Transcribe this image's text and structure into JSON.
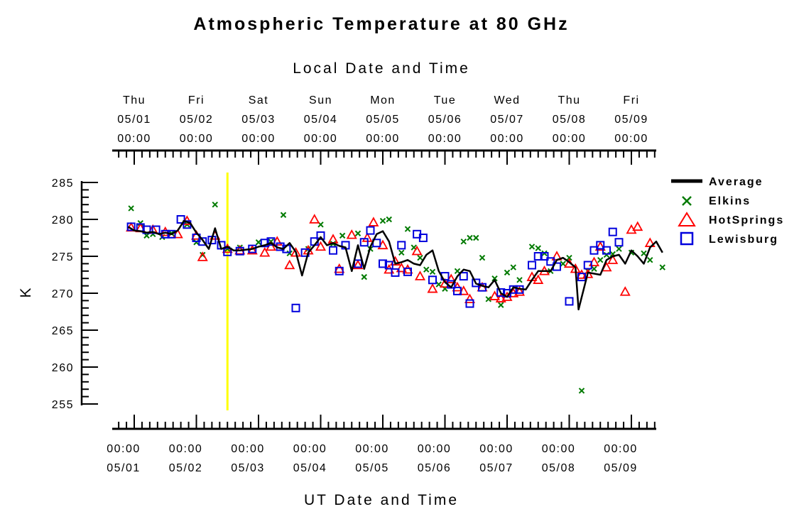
{
  "chart_data": {
    "type": "line",
    "title": "Atmospheric Temperature at 80 GHz",
    "xlabel": "UT Date and Time",
    "x2label": "Local Date and Time",
    "ylabel": "K",
    "ylim": [
      255,
      285
    ],
    "yticks": [
      "285",
      "280",
      "275",
      "270",
      "265",
      "260",
      "255"
    ],
    "xlim": [
      "05/01 00:00",
      "05/09 12:00"
    ],
    "bottom_ticks": [
      {
        "time": "00:00",
        "date": "05/01"
      },
      {
        "time": "00:00",
        "date": "05/02"
      },
      {
        "time": "00:00",
        "date": "05/03"
      },
      {
        "time": "00:00",
        "date": "05/04"
      },
      {
        "time": "00:00",
        "date": "05/05"
      },
      {
        "time": "00:00",
        "date": "05/06"
      },
      {
        "time": "00:00",
        "date": "05/07"
      },
      {
        "time": "00:00",
        "date": "05/08"
      },
      {
        "time": "00:00",
        "date": "05/09"
      }
    ],
    "top_ticks": [
      {
        "day": "Thu",
        "date": "05/01",
        "time": "00:00"
      },
      {
        "day": "Fri",
        "date": "05/02",
        "time": "00:00"
      },
      {
        "day": "Sat",
        "date": "05/03",
        "time": "00:00"
      },
      {
        "day": "Sun",
        "date": "05/04",
        "time": "00:00"
      },
      {
        "day": "Mon",
        "date": "05/05",
        "time": "00:00"
      },
      {
        "day": "Tue",
        "date": "05/06",
        "time": "00:00"
      },
      {
        "day": "Wed",
        "date": "05/07",
        "time": "00:00"
      },
      {
        "day": "Thu",
        "date": "05/08",
        "time": "00:00"
      },
      {
        "day": "Fri",
        "date": "05/09",
        "time": "00:00"
      }
    ],
    "marker_line_day": 1.5,
    "legend_position": "right",
    "series": [
      {
        "name": "Average",
        "style": "line",
        "color": "#000000",
        "points": [
          [
            -0.1,
            279.0
          ],
          [
            0.0,
            278.5
          ],
          [
            0.1,
            278.4
          ],
          [
            0.2,
            278.2
          ],
          [
            0.3,
            278.3
          ],
          [
            0.4,
            278.0
          ],
          [
            0.5,
            278.2
          ],
          [
            0.6,
            278.0
          ],
          [
            0.7,
            278.5
          ],
          [
            0.8,
            279.8
          ],
          [
            0.9,
            279.5
          ],
          [
            1.0,
            278.2
          ],
          [
            1.1,
            277.2
          ],
          [
            1.2,
            276.0
          ],
          [
            1.3,
            278.8
          ],
          [
            1.4,
            276.0
          ],
          [
            1.5,
            276.3
          ],
          [
            1.6,
            275.8
          ],
          [
            1.7,
            275.8
          ],
          [
            1.8,
            275.9
          ],
          [
            1.9,
            276.0
          ],
          [
            2.0,
            276.3
          ],
          [
            2.1,
            276.5
          ],
          [
            2.2,
            276.8
          ],
          [
            2.3,
            276.2
          ],
          [
            2.4,
            276.0
          ],
          [
            2.5,
            276.8
          ],
          [
            2.6,
            275.6
          ],
          [
            2.7,
            272.4
          ],
          [
            2.8,
            275.5
          ],
          [
            2.9,
            276.5
          ],
          [
            3.0,
            277.6
          ],
          [
            3.1,
            276.5
          ],
          [
            3.2,
            276.8
          ],
          [
            3.3,
            276.4
          ],
          [
            3.4,
            276.2
          ],
          [
            3.5,
            273.0
          ],
          [
            3.6,
            276.5
          ],
          [
            3.7,
            273.3
          ],
          [
            3.8,
            276.3
          ],
          [
            3.9,
            278.0
          ],
          [
            4.0,
            278.4
          ],
          [
            4.1,
            277.0
          ],
          [
            4.2,
            274.0
          ],
          [
            4.3,
            274.2
          ],
          [
            4.4,
            274.5
          ],
          [
            4.5,
            274.0
          ],
          [
            4.6,
            273.8
          ],
          [
            4.7,
            275.2
          ],
          [
            4.8,
            275.8
          ],
          [
            4.9,
            273.0
          ],
          [
            5.0,
            271.5
          ],
          [
            5.1,
            270.8
          ],
          [
            5.2,
            272.3
          ],
          [
            5.3,
            273.2
          ],
          [
            5.4,
            273.0
          ],
          [
            5.5,
            271.3
          ],
          [
            5.6,
            271.0
          ],
          [
            5.7,
            270.8
          ],
          [
            5.8,
            271.8
          ],
          [
            5.9,
            270.0
          ],
          [
            6.0,
            269.5
          ],
          [
            6.1,
            270.8
          ],
          [
            6.2,
            270.6
          ],
          [
            6.3,
            270.5
          ],
          [
            6.4,
            271.8
          ],
          [
            6.5,
            273.0
          ],
          [
            6.6,
            273.0
          ],
          [
            6.7,
            273.0
          ],
          [
            6.8,
            274.5
          ],
          [
            6.9,
            274.8
          ],
          [
            7.0,
            274.2
          ],
          [
            7.1,
            273.5
          ],
          [
            7.15,
            267.8
          ],
          [
            7.3,
            272.8
          ],
          [
            7.5,
            272.5
          ],
          [
            7.6,
            274.5
          ],
          [
            7.7,
            275.0
          ],
          [
            7.8,
            275.2
          ],
          [
            7.9,
            274.0
          ],
          [
            8.0,
            275.8
          ],
          [
            8.1,
            275.0
          ],
          [
            8.2,
            274.0
          ],
          [
            8.3,
            276.2
          ],
          [
            8.4,
            277.0
          ],
          [
            8.5,
            275.5
          ]
        ]
      },
      {
        "name": "Elkins",
        "style": "x",
        "color": "#007a00",
        "points": [
          [
            -0.05,
            281.5
          ],
          [
            0.1,
            279.5
          ],
          [
            0.2,
            277.8
          ],
          [
            0.3,
            278.0
          ],
          [
            0.45,
            277.6
          ],
          [
            0.6,
            278.1
          ],
          [
            0.85,
            279.3
          ],
          [
            1.0,
            276.9
          ],
          [
            1.1,
            275.2
          ],
          [
            1.3,
            282.0
          ],
          [
            1.5,
            276.0
          ],
          [
            1.7,
            276.2
          ],
          [
            2.0,
            276.9
          ],
          [
            2.2,
            277.0
          ],
          [
            2.4,
            280.6
          ],
          [
            2.5,
            275.4
          ],
          [
            2.8,
            276.0
          ],
          [
            3.0,
            279.3
          ],
          [
            3.2,
            276.7
          ],
          [
            3.35,
            277.8
          ],
          [
            3.6,
            278.1
          ],
          [
            3.7,
            272.2
          ],
          [
            3.8,
            276.0
          ],
          [
            4.0,
            279.8
          ],
          [
            4.1,
            280.0
          ],
          [
            4.3,
            275.5
          ],
          [
            4.4,
            278.7
          ],
          [
            4.5,
            276.2
          ],
          [
            4.6,
            274.8
          ],
          [
            4.7,
            273.2
          ],
          [
            4.8,
            272.9
          ],
          [
            4.9,
            271.2
          ],
          [
            5.0,
            270.6
          ],
          [
            5.2,
            273.0
          ],
          [
            5.3,
            277.0
          ],
          [
            5.4,
            277.5
          ],
          [
            5.5,
            277.5
          ],
          [
            5.6,
            274.8
          ],
          [
            5.7,
            269.2
          ],
          [
            5.8,
            272.0
          ],
          [
            5.9,
            268.4
          ],
          [
            6.0,
            272.8
          ],
          [
            6.1,
            273.5
          ],
          [
            6.2,
            271.8
          ],
          [
            6.4,
            276.3
          ],
          [
            6.5,
            276.1
          ],
          [
            6.6,
            275.4
          ],
          [
            6.7,
            273.0
          ],
          [
            6.9,
            274.0
          ],
          [
            7.0,
            274.8
          ],
          [
            7.2,
            256.8
          ],
          [
            7.3,
            273.0
          ],
          [
            7.4,
            273.3
          ],
          [
            7.5,
            274.5
          ],
          [
            7.6,
            275.2
          ],
          [
            7.7,
            275.3
          ],
          [
            7.8,
            276.0
          ],
          [
            8.0,
            275.5
          ],
          [
            8.2,
            275.4
          ],
          [
            8.3,
            274.5
          ],
          [
            8.5,
            273.5
          ]
        ]
      },
      {
        "name": "HotSprings",
        "style": "triangle",
        "color": "#ff0000",
        "points": [
          [
            -0.05,
            278.9
          ],
          [
            0.1,
            278.8
          ],
          [
            0.3,
            278.6
          ],
          [
            0.5,
            278.3
          ],
          [
            0.7,
            278.0
          ],
          [
            0.85,
            279.8
          ],
          [
            1.0,
            277.8
          ],
          [
            1.1,
            274.9
          ],
          [
            1.3,
            277.8
          ],
          [
            1.5,
            276.0
          ],
          [
            1.7,
            275.8
          ],
          [
            1.9,
            275.8
          ],
          [
            2.1,
            275.5
          ],
          [
            2.2,
            276.3
          ],
          [
            2.3,
            277.0
          ],
          [
            2.5,
            273.8
          ],
          [
            2.6,
            275.5
          ],
          [
            2.8,
            275.8
          ],
          [
            2.9,
            280.0
          ],
          [
            3.0,
            276.3
          ],
          [
            3.2,
            277.3
          ],
          [
            3.3,
            273.3
          ],
          [
            3.5,
            277.9
          ],
          [
            3.6,
            273.8
          ],
          [
            3.75,
            277.5
          ],
          [
            3.85,
            279.6
          ],
          [
            4.0,
            276.5
          ],
          [
            4.1,
            273.2
          ],
          [
            4.2,
            274.3
          ],
          [
            4.3,
            273.4
          ],
          [
            4.4,
            273.2
          ],
          [
            4.55,
            275.7
          ],
          [
            4.6,
            272.3
          ],
          [
            4.8,
            270.6
          ],
          [
            5.0,
            271.3
          ],
          [
            5.1,
            271.9
          ],
          [
            5.2,
            270.8
          ],
          [
            5.3,
            270.3
          ],
          [
            5.4,
            269.2
          ],
          [
            5.6,
            270.8
          ],
          [
            5.8,
            269.6
          ],
          [
            5.9,
            269.3
          ],
          [
            6.0,
            269.5
          ],
          [
            6.1,
            270.0
          ],
          [
            6.2,
            270.2
          ],
          [
            6.4,
            272.2
          ],
          [
            6.5,
            271.8
          ],
          [
            6.6,
            273.0
          ],
          [
            6.8,
            275.0
          ],
          [
            7.0,
            274.0
          ],
          [
            7.1,
            273.3
          ],
          [
            7.2,
            272.5
          ],
          [
            7.3,
            272.6
          ],
          [
            7.4,
            274.2
          ],
          [
            7.5,
            276.3
          ],
          [
            7.6,
            273.5
          ],
          [
            7.7,
            274.5
          ],
          [
            7.9,
            270.2
          ],
          [
            8.0,
            278.6
          ],
          [
            8.1,
            279.0
          ],
          [
            8.3,
            276.8
          ]
        ]
      },
      {
        "name": "Lewisburg",
        "style": "square",
        "color": "#0000dd",
        "points": [
          [
            -0.05,
            279.0
          ],
          [
            0.1,
            278.9
          ],
          [
            0.2,
            278.6
          ],
          [
            0.35,
            278.6
          ],
          [
            0.5,
            278.0
          ],
          [
            0.6,
            278.0
          ],
          [
            0.75,
            280.0
          ],
          [
            0.85,
            279.3
          ],
          [
            1.0,
            277.5
          ],
          [
            1.1,
            277.0
          ],
          [
            1.25,
            277.2
          ],
          [
            1.4,
            276.5
          ],
          [
            1.5,
            275.6
          ],
          [
            1.7,
            275.7
          ],
          [
            1.9,
            276.0
          ],
          [
            2.1,
            276.8
          ],
          [
            2.2,
            277.0
          ],
          [
            2.35,
            276.3
          ],
          [
            2.45,
            276.0
          ],
          [
            2.6,
            268.0
          ],
          [
            2.75,
            275.5
          ],
          [
            2.9,
            277.0
          ],
          [
            3.0,
            277.8
          ],
          [
            3.2,
            275.8
          ],
          [
            3.3,
            273.0
          ],
          [
            3.4,
            276.5
          ],
          [
            3.6,
            274.0
          ],
          [
            3.7,
            276.9
          ],
          [
            3.8,
            278.5
          ],
          [
            3.9,
            276.8
          ],
          [
            4.0,
            274.0
          ],
          [
            4.1,
            273.8
          ],
          [
            4.2,
            272.8
          ],
          [
            4.3,
            276.5
          ],
          [
            4.4,
            272.9
          ],
          [
            4.55,
            278.0
          ],
          [
            4.65,
            277.5
          ],
          [
            4.8,
            271.8
          ],
          [
            5.0,
            272.3
          ],
          [
            5.1,
            271.2
          ],
          [
            5.2,
            270.3
          ],
          [
            5.3,
            272.3
          ],
          [
            5.4,
            268.6
          ],
          [
            5.5,
            271.4
          ],
          [
            5.6,
            270.8
          ],
          [
            5.9,
            270.1
          ],
          [
            6.0,
            270.0
          ],
          [
            6.1,
            270.5
          ],
          [
            6.2,
            270.5
          ],
          [
            6.4,
            273.8
          ],
          [
            6.5,
            275.0
          ],
          [
            6.6,
            275.0
          ],
          [
            6.7,
            274.3
          ],
          [
            6.8,
            273.6
          ],
          [
            7.0,
            268.9
          ],
          [
            7.2,
            272.2
          ],
          [
            7.3,
            273.8
          ],
          [
            7.4,
            275.8
          ],
          [
            7.5,
            276.5
          ],
          [
            7.6,
            275.8
          ],
          [
            7.7,
            278.3
          ],
          [
            7.8,
            276.9
          ]
        ]
      }
    ]
  }
}
